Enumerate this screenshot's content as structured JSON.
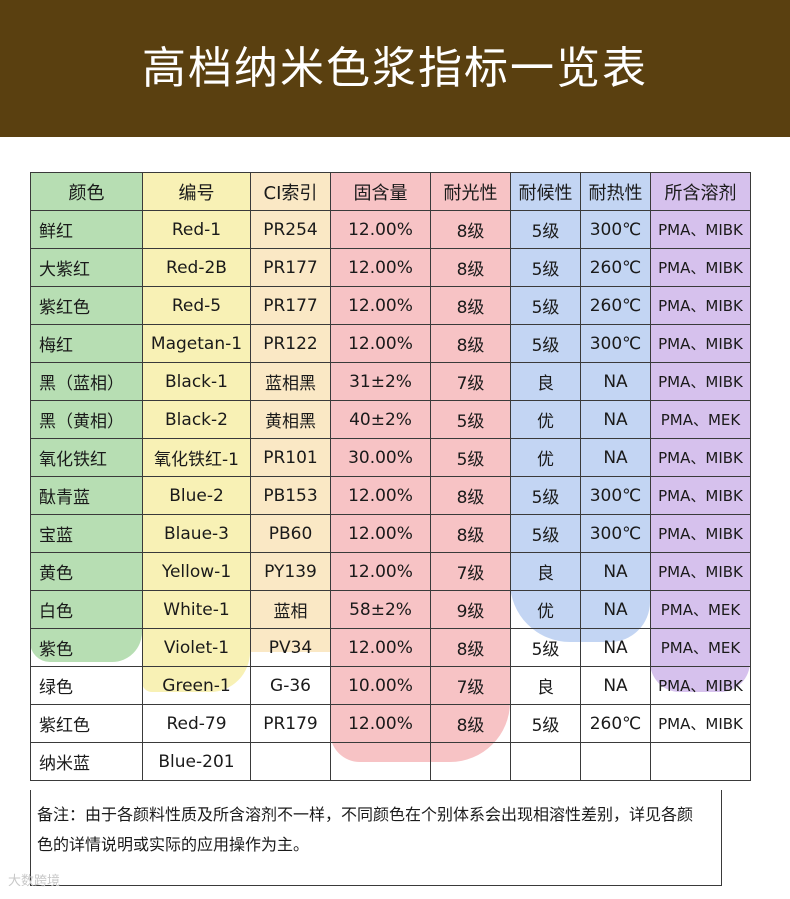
{
  "title": "高档纳米色浆指标一览表",
  "table": {
    "headers": [
      "颜色",
      "编号",
      "CI索引",
      "固含量",
      "耐光性",
      "耐候性",
      "耐热性",
      "所含溶剂"
    ],
    "rows": [
      [
        "鲜红",
        "Red-1",
        "PR254",
        "12.00%",
        "8级",
        "5级",
        "300℃",
        "PMA、MIBK"
      ],
      [
        "大紫红",
        "Red-2B",
        "PR177",
        "12.00%",
        "8级",
        "5级",
        "260℃",
        "PMA、MIBK"
      ],
      [
        "紫红色",
        "Red-5",
        "PR177",
        "12.00%",
        "8级",
        "5级",
        "260℃",
        "PMA、MIBK"
      ],
      [
        "梅红",
        "Magetan-1",
        "PR122",
        "12.00%",
        "8级",
        "5级",
        "300℃",
        "PMA、MIBK"
      ],
      [
        "黑（蓝相）",
        "Black-1",
        "蓝相黑",
        "31±2%",
        "7级",
        "良",
        "NA",
        "PMA、MIBK"
      ],
      [
        "黑（黄相）",
        "Black-2",
        "黄相黑",
        "40±2%",
        "5级",
        "优",
        "NA",
        "PMA、MEK"
      ],
      [
        "氧化铁红",
        "氧化铁红-1",
        "PR101",
        "30.00%",
        "5级",
        "优",
        "NA",
        "PMA、MIBK"
      ],
      [
        "酞青蓝",
        "Blue-2",
        "PB153",
        "12.00%",
        "8级",
        "5级",
        "300℃",
        "PMA、MIBK"
      ],
      [
        "宝蓝",
        "Blaue-3",
        "PB60",
        "12.00%",
        "8级",
        "5级",
        "300℃",
        "PMA、MIBK"
      ],
      [
        "黄色",
        "Yellow-1",
        "PY139",
        "12.00%",
        "7级",
        "良",
        "NA",
        "PMA、MIBK"
      ],
      [
        "白色",
        "White-1",
        "蓝相",
        "58±2%",
        "9级",
        "优",
        "NA",
        "PMA、MEK"
      ],
      [
        "紫色",
        "Violet-1",
        "PV34",
        "12.00%",
        "8级",
        "5级",
        "NA",
        "PMA、MEK"
      ],
      [
        "绿色",
        "Green-1",
        "G-36",
        "10.00%",
        "7级",
        "良",
        "NA",
        "PMA、MIBK"
      ],
      [
        "紫红色",
        "Red-79",
        "PR179",
        "12.00%",
        "8级",
        "5级",
        "260℃",
        "PMA、MIBK"
      ],
      [
        "纳米蓝",
        "Blue-201",
        "",
        "",
        "",
        "",
        "",
        ""
      ]
    ]
  },
  "note": "备注：由于各颜料性质及所含溶剂不一样，不同颜色在个别体系会出现相溶性差别，详见各颜色的详情说明或实际的应用操作为主。",
  "watermark": "大数跨境",
  "colors": {
    "banner": "#5a4010",
    "wash_green": "#9fd39a",
    "wash_yellow": "#f6ec9c",
    "wash_pink": "#f2a3a6",
    "wash_blue": "#a9c3ee",
    "wash_violet": "#c4a6e6"
  }
}
